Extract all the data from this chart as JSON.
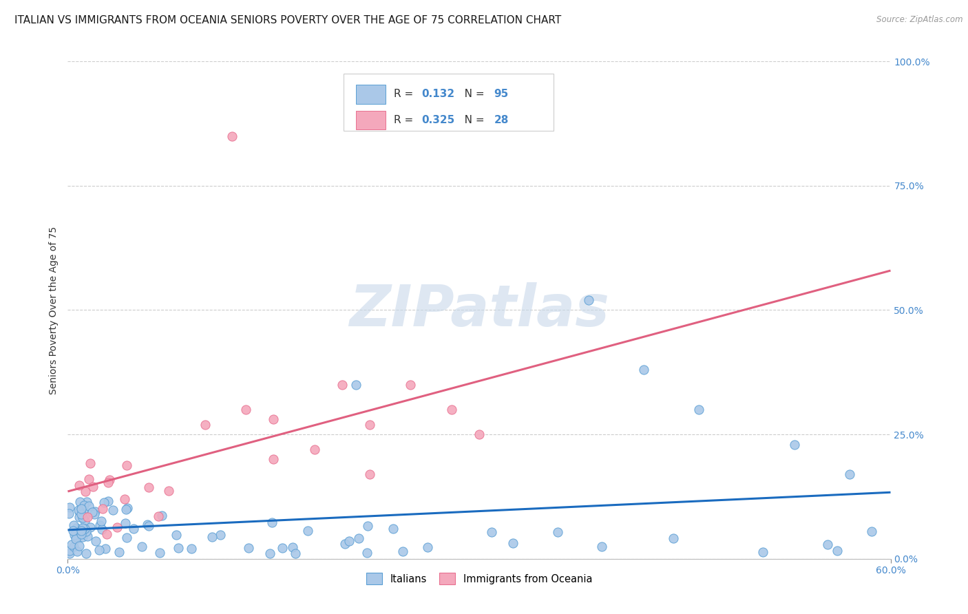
{
  "title": "ITALIAN VS IMMIGRANTS FROM OCEANIA SENIORS POVERTY OVER THE AGE OF 75 CORRELATION CHART",
  "source": "Source: ZipAtlas.com",
  "ylabel": "Seniors Poverty Over the Age of 75",
  "xlabel_edge_left": "0.0%",
  "xlabel_edge_right": "60.0%",
  "ylabel_ticks": [
    "0.0%",
    "25.0%",
    "50.0%",
    "75.0%",
    "100.0%"
  ],
  "ylabel_vals": [
    0.0,
    0.25,
    0.5,
    0.75,
    1.0
  ],
  "xlim": [
    0.0,
    0.6
  ],
  "ylim": [
    0.0,
    1.0
  ],
  "italian_R": "0.132",
  "italian_N": "95",
  "oceania_R": "0.325",
  "oceania_N": "28",
  "italian_color": "#aac8e8",
  "oceania_color": "#f4a8bc",
  "italian_edge_color": "#5a9fd4",
  "oceania_edge_color": "#e87090",
  "italian_trend_color": "#1a6bbf",
  "oceania_trend_color": "#e06080",
  "tick_color": "#4488cc",
  "legend_label_italian": "Italians",
  "legend_label_oceania": "Immigrants from Oceania",
  "watermark_text": "ZIPatlas",
  "watermark_color": "#c8d8ea",
  "title_fontsize": 11,
  "axis_label_fontsize": 10,
  "tick_fontsize": 10,
  "legend_fontsize": 11
}
